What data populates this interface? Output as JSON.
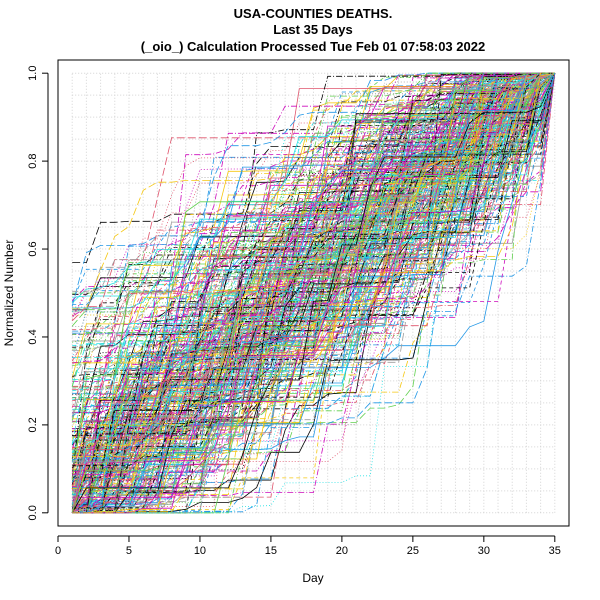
{
  "chart_data": {
    "type": "line",
    "title_lines": [
      "USA-COUNTIES DEATHS.",
      "Last 35 Days",
      "(_oio_) Calculation Processed  Tue Feb 01 07:58:03 2022"
    ],
    "xlabel": "Day",
    "ylabel": "Normalized Number",
    "xlim": [
      0,
      36
    ],
    "ylim": [
      -0.03,
      1.03
    ],
    "x_ticks": [
      0,
      5,
      10,
      15,
      20,
      25,
      30,
      35
    ],
    "x_tick_labels": [
      "0",
      "5",
      "10",
      "15",
      "20",
      "25",
      "30",
      "35"
    ],
    "y_ticks": [
      0.0,
      0.2,
      0.4,
      0.6,
      0.8,
      1.0
    ],
    "y_tick_labels": [
      "0.0",
      "0.2",
      "0.4",
      "0.6",
      "0.8",
      "1.0"
    ],
    "grid": true,
    "series_count": 420,
    "x_start": 1,
    "x_end": 35,
    "colors": [
      "#000000",
      "#df536b",
      "#61d04f",
      "#2297e6",
      "#28e2e5",
      "#cd0bbc",
      "#f5c710",
      "#9e9e9e"
    ],
    "trend": "cumulative counts normalized from 0 at day 1 to 1 at day 35"
  }
}
